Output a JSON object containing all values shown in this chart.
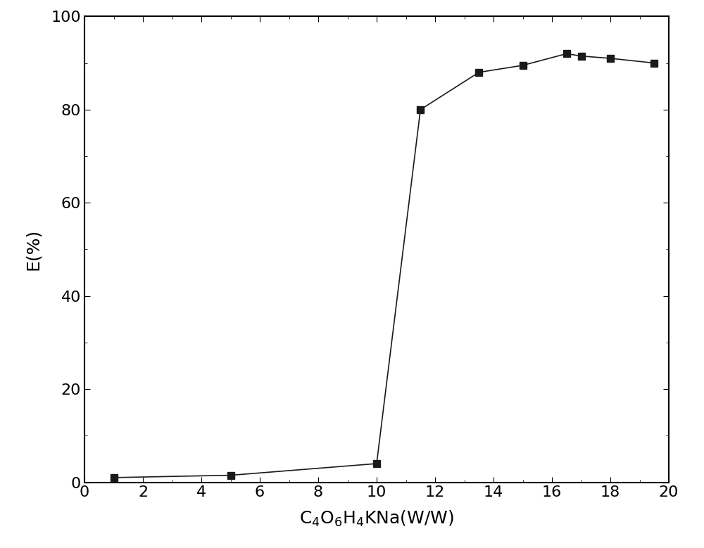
{
  "x": [
    1,
    5,
    10,
    11.5,
    13.5,
    15,
    16.5,
    17,
    18,
    19.5
  ],
  "y": [
    1,
    1.5,
    4,
    80,
    88,
    89.5,
    92,
    91.5,
    91,
    90
  ],
  "xlabel": "C$_4$O$_6$H$_4$KNa(W/W)",
  "ylabel": "E(%)",
  "xlim": [
    0,
    20
  ],
  "ylim": [
    0,
    100
  ],
  "xticks": [
    0,
    2,
    4,
    6,
    8,
    10,
    12,
    14,
    16,
    18,
    20
  ],
  "yticks": [
    0,
    20,
    40,
    60,
    80,
    100
  ],
  "marker": "s",
  "marker_size": 7,
  "line_color": "#1a1a1a",
  "marker_color": "#1a1a1a",
  "background_color": "#ffffff",
  "line_width": 1.2,
  "label_fontsize": 18,
  "tick_fontsize": 16
}
